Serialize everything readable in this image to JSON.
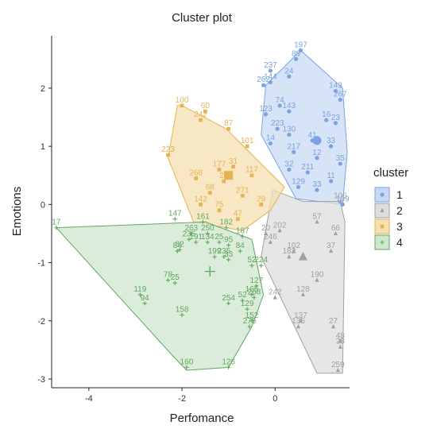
{
  "chart_data": {
    "type": "scatter",
    "title": "Cluster plot",
    "xlabel": "Perfomance",
    "ylabel": "Emotions",
    "xlim": [
      -4.8,
      1.6
    ],
    "ylim": [
      -3.15,
      2.9
    ],
    "xticks": [
      -4,
      -2,
      0
    ],
    "yticks": [
      -3,
      -2,
      -1,
      0,
      1,
      2
    ],
    "xtick_labels": [
      "-4",
      "-2",
      "0"
    ],
    "ytick_labels": [
      "-3",
      "-2",
      "-1",
      "0",
      "1",
      "2"
    ],
    "grid": false,
    "legend": {
      "title": "cluster",
      "position": "right"
    },
    "series": [
      {
        "name": "1",
        "marker": "circle",
        "color": "#7aa3e0",
        "fill": "#c9d9f3",
        "hull": [
          [
            0.55,
            2.65
          ],
          [
            1.45,
            2.0
          ],
          [
            1.55,
            0.9
          ],
          [
            1.45,
            0.0
          ],
          [
            0.45,
            0.1
          ],
          [
            -0.3,
            1.2
          ],
          [
            -0.2,
            2.05
          ]
        ],
        "centroid": [
          0.9,
          1.1
        ],
        "points": [
          {
            "x": 0.55,
            "y": 2.65,
            "label": "197"
          },
          {
            "x": 0.45,
            "y": 2.5,
            "label": "89"
          },
          {
            "x": -0.1,
            "y": 2.3,
            "label": "237"
          },
          {
            "x": 0.3,
            "y": 2.2,
            "label": "24"
          },
          {
            "x": -0.25,
            "y": 2.05,
            "label": "262"
          },
          {
            "x": -0.1,
            "y": 2.1,
            "label": "144"
          },
          {
            "x": 1.3,
            "y": 1.95,
            "label": "143"
          },
          {
            "x": 1.4,
            "y": 1.8,
            "label": "267"
          },
          {
            "x": 0.1,
            "y": 1.7,
            "label": "74"
          },
          {
            "x": 0.3,
            "y": 1.6,
            "label": "143"
          },
          {
            "x": -0.2,
            "y": 1.55,
            "label": "123"
          },
          {
            "x": 1.1,
            "y": 1.45,
            "label": "16"
          },
          {
            "x": 1.3,
            "y": 1.4,
            "label": "23"
          },
          {
            "x": 0.05,
            "y": 1.3,
            "label": "223"
          },
          {
            "x": 0.3,
            "y": 1.2,
            "label": "130"
          },
          {
            "x": 0.8,
            "y": 1.1,
            "label": "41"
          },
          {
            "x": 1.2,
            "y": 1.0,
            "label": "33"
          },
          {
            "x": -0.1,
            "y": 1.05,
            "label": "14"
          },
          {
            "x": 0.4,
            "y": 0.9,
            "label": "217"
          },
          {
            "x": 0.9,
            "y": 0.8,
            "label": "12"
          },
          {
            "x": 1.4,
            "y": 0.7,
            "label": "35"
          },
          {
            "x": 0.3,
            "y": 0.6,
            "label": "32"
          },
          {
            "x": 0.7,
            "y": 0.55,
            "label": "211"
          },
          {
            "x": 1.2,
            "y": 0.4,
            "label": "11"
          },
          {
            "x": 0.5,
            "y": 0.3,
            "label": "129"
          },
          {
            "x": 0.9,
            "y": 0.25,
            "label": "33"
          },
          {
            "x": 1.45,
            "y": 0.0,
            "label": "109"
          }
        ]
      },
      {
        "name": "2",
        "marker": "triangle",
        "color": "#a0a0a0",
        "fill": "#dedede",
        "hull": [
          [
            -0.05,
            0.25
          ],
          [
            0.6,
            0.05
          ],
          [
            1.4,
            0.05
          ],
          [
            1.5,
            -0.3
          ],
          [
            1.45,
            -2.9
          ],
          [
            0.9,
            -2.9
          ],
          [
            -0.3,
            -0.9
          ]
        ],
        "centroid": [
          0.6,
          -0.9
        ],
        "points": [
          {
            "x": 1.4,
            "y": 0.05,
            "label": "106"
          },
          {
            "x": 0.9,
            "y": -0.3,
            "label": "57"
          },
          {
            "x": 1.3,
            "y": -0.5,
            "label": "66"
          },
          {
            "x": 0.1,
            "y": -0.45,
            "label": "202"
          },
          {
            "x": -0.2,
            "y": -0.5,
            "label": "20"
          },
          {
            "x": -0.1,
            "y": -0.65,
            "label": "246"
          },
          {
            "x": 0.4,
            "y": -0.8,
            "label": "102"
          },
          {
            "x": 1.2,
            "y": -0.8,
            "label": "37"
          },
          {
            "x": 0.3,
            "y": -0.9,
            "label": "182"
          },
          {
            "x": 0.9,
            "y": -1.3,
            "label": "190"
          },
          {
            "x": 0.6,
            "y": -1.55,
            "label": "128"
          },
          {
            "x": 0.0,
            "y": -1.6,
            "label": "242"
          },
          {
            "x": 0.5,
            "y": -2.1,
            "label": "135"
          },
          {
            "x": 0.55,
            "y": -2.0,
            "label": "137"
          },
          {
            "x": 1.25,
            "y": -2.1,
            "label": "27"
          },
          {
            "x": 1.4,
            "y": -2.35,
            "label": "48"
          },
          {
            "x": 1.4,
            "y": -2.45,
            "label": "28"
          },
          {
            "x": 1.35,
            "y": -2.85,
            "label": "259"
          }
        ]
      },
      {
        "name": "3",
        "marker": "square",
        "color": "#e6b353",
        "fill": "#f6dfb0",
        "hull": [
          [
            -2.0,
            1.7
          ],
          [
            -1.05,
            1.3
          ],
          [
            0.2,
            0.3
          ],
          [
            -0.1,
            -0.1
          ],
          [
            -0.7,
            -0.45
          ],
          [
            -1.75,
            -0.3
          ],
          [
            -2.3,
            0.8
          ],
          [
            -2.1,
            1.7
          ]
        ],
        "centroid": [
          -1.0,
          0.5
        ],
        "points": [
          {
            "x": -2.0,
            "y": 1.7,
            "label": "100"
          },
          {
            "x": -1.5,
            "y": 1.6,
            "label": "60"
          },
          {
            "x": -1.6,
            "y": 1.45,
            "label": "242"
          },
          {
            "x": -1.0,
            "y": 1.3,
            "label": "87"
          },
          {
            "x": -2.3,
            "y": 0.85,
            "label": "223"
          },
          {
            "x": -0.6,
            "y": 1.0,
            "label": "101"
          },
          {
            "x": -1.2,
            "y": 0.6,
            "label": "177"
          },
          {
            "x": -0.9,
            "y": 0.65,
            "label": "31"
          },
          {
            "x": -1.7,
            "y": 0.45,
            "label": "268"
          },
          {
            "x": -1.1,
            "y": 0.4,
            "label": "28"
          },
          {
            "x": -0.5,
            "y": 0.5,
            "label": "117"
          },
          {
            "x": -1.4,
            "y": 0.2,
            "label": "68"
          },
          {
            "x": -0.7,
            "y": 0.15,
            "label": "271"
          },
          {
            "x": -1.6,
            "y": 0.0,
            "label": "142"
          },
          {
            "x": -1.2,
            "y": -0.1,
            "label": "75"
          },
          {
            "x": -0.3,
            "y": 0.0,
            "label": "29"
          },
          {
            "x": -0.8,
            "y": -0.25,
            "label": "47"
          }
        ]
      },
      {
        "name": "4",
        "marker": "plus",
        "color": "#5fa85f",
        "fill": "#cfe6cf",
        "hull": [
          [
            -4.7,
            -0.4
          ],
          [
            -1.5,
            -0.3
          ],
          [
            -0.5,
            -0.6
          ],
          [
            -0.25,
            -1.55
          ],
          [
            -0.5,
            -2.1
          ],
          [
            -1.0,
            -2.8
          ],
          [
            -1.9,
            -2.85
          ],
          [
            -2.2,
            -2.6
          ]
        ],
        "centroid": [
          -1.4,
          -1.15
        ],
        "points": [
          {
            "x": -4.7,
            "y": -0.4,
            "label": "17"
          },
          {
            "x": -2.15,
            "y": -0.25,
            "label": "147"
          },
          {
            "x": -1.55,
            "y": -0.3,
            "label": "161"
          },
          {
            "x": -1.05,
            "y": -0.4,
            "label": "182"
          },
          {
            "x": -1.8,
            "y": -0.5,
            "label": "263"
          },
          {
            "x": -1.45,
            "y": -0.5,
            "label": "250"
          },
          {
            "x": -1.85,
            "y": -0.6,
            "label": "236"
          },
          {
            "x": -1.7,
            "y": -0.65,
            "label": "191"
          },
          {
            "x": -1.45,
            "y": -0.65,
            "label": "134"
          },
          {
            "x": -1.2,
            "y": -0.65,
            "label": "25"
          },
          {
            "x": -0.7,
            "y": -0.55,
            "label": "187"
          },
          {
            "x": -2.1,
            "y": -0.8,
            "label": "84"
          },
          {
            "x": -2.05,
            "y": -0.78,
            "label": "82"
          },
          {
            "x": -1.0,
            "y": -0.7,
            "label": "95"
          },
          {
            "x": -0.75,
            "y": -0.8,
            "label": "84"
          },
          {
            "x": -1.3,
            "y": -0.9,
            "label": "199"
          },
          {
            "x": -1.1,
            "y": -0.9,
            "label": "235"
          },
          {
            "x": -1.0,
            "y": -0.95,
            "label": "33"
          },
          {
            "x": -0.5,
            "y": -1.05,
            "label": "52"
          },
          {
            "x": -0.3,
            "y": -1.05,
            "label": "224"
          },
          {
            "x": -2.3,
            "y": -1.3,
            "label": "78"
          },
          {
            "x": -2.15,
            "y": -1.35,
            "label": "25"
          },
          {
            "x": -0.4,
            "y": -1.4,
            "label": "127"
          },
          {
            "x": -2.9,
            "y": -1.55,
            "label": "119"
          },
          {
            "x": -0.5,
            "y": -1.55,
            "label": "165"
          },
          {
            "x": -0.45,
            "y": -1.6,
            "label": "268"
          },
          {
            "x": -0.7,
            "y": -1.65,
            "label": "52"
          },
          {
            "x": -1.0,
            "y": -1.7,
            "label": "254"
          },
          {
            "x": -2.8,
            "y": -1.7,
            "label": "94"
          },
          {
            "x": -0.6,
            "y": -1.8,
            "label": "129"
          },
          {
            "x": -2.0,
            "y": -1.9,
            "label": "158"
          },
          {
            "x": -0.5,
            "y": -2.0,
            "label": "152"
          },
          {
            "x": -0.55,
            "y": -2.1,
            "label": "275"
          },
          {
            "x": -1.9,
            "y": -2.8,
            "label": "160"
          },
          {
            "x": -1.0,
            "y": -2.8,
            "label": "126"
          }
        ]
      }
    ]
  }
}
